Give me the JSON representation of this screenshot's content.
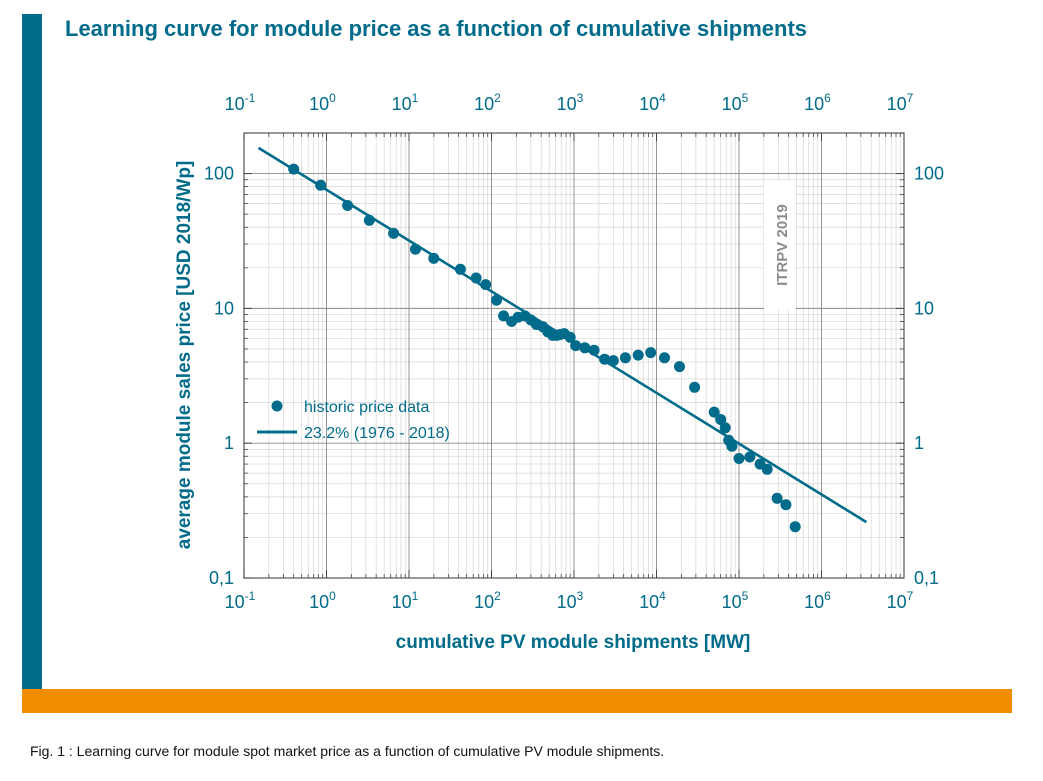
{
  "title": "Learning curve for module price as a function of cumulative shipments",
  "caption": "Fig. 1 : Learning curve for module spot market price as a function of cumulative PV module shipments.",
  "colors": {
    "accent": "#006b8a",
    "orange": "#f28c00"
  },
  "chart_data": {
    "type": "scatter",
    "xscale": "log",
    "yscale": "log",
    "xlim": [
      0.1,
      10000000
    ],
    "ylim": [
      0.1,
      200
    ],
    "xlabel": "cumulative PV module shipments [MW]",
    "ylabel": "average module sales price [USD 2018/Wp]",
    "x_tick_labels": [
      "10-1",
      "100",
      "101",
      "102",
      "103",
      "104",
      "105",
      "106",
      "107"
    ],
    "y_tick_labels": [
      "0,1",
      "1",
      "10",
      "100"
    ],
    "grid": true,
    "legend_position": "left-center",
    "annotation": "ITRPV 2019",
    "series": [
      {
        "name": "historic price data",
        "kind": "scatter",
        "points": [
          [
            0.4,
            108
          ],
          [
            0.85,
            82
          ],
          [
            1.8,
            58
          ],
          [
            3.3,
            45
          ],
          [
            6.5,
            36
          ],
          [
            12,
            27.5
          ],
          [
            20,
            23.5
          ],
          [
            42,
            19.5
          ],
          [
            65,
            16.8
          ],
          [
            85,
            15
          ],
          [
            115,
            11.5
          ],
          [
            140,
            8.8
          ],
          [
            175,
            8
          ],
          [
            210,
            8.6
          ],
          [
            255,
            8.8
          ],
          [
            300,
            8.2
          ],
          [
            350,
            7.6
          ],
          [
            420,
            7.3
          ],
          [
            480,
            6.7
          ],
          [
            550,
            6.3
          ],
          [
            620,
            6.3
          ],
          [
            680,
            6.4
          ],
          [
            760,
            6.5
          ],
          [
            900,
            6.1
          ],
          [
            1050,
            5.3
          ],
          [
            1350,
            5.1
          ],
          [
            1750,
            4.9
          ],
          [
            2350,
            4.2
          ],
          [
            3000,
            4.1
          ],
          [
            4200,
            4.3
          ],
          [
            6000,
            4.5
          ],
          [
            8500,
            4.7
          ],
          [
            12500,
            4.3
          ],
          [
            19000,
            3.7
          ],
          [
            29000,
            2.6
          ],
          [
            50000,
            1.7
          ],
          [
            60000,
            1.5
          ],
          [
            68000,
            1.3
          ],
          [
            75000,
            1.05
          ],
          [
            82000,
            0.95
          ],
          [
            100000,
            0.77
          ],
          [
            135000,
            0.79
          ],
          [
            180000,
            0.7
          ],
          [
            220000,
            0.64
          ],
          [
            290000,
            0.39
          ],
          [
            370000,
            0.35
          ],
          [
            480000,
            0.24
          ]
        ]
      },
      {
        "name": "23.2% (1976 - 2018)",
        "kind": "line",
        "points": [
          [
            0.15,
            155
          ],
          [
            3500000,
            0.26
          ]
        ]
      }
    ]
  }
}
